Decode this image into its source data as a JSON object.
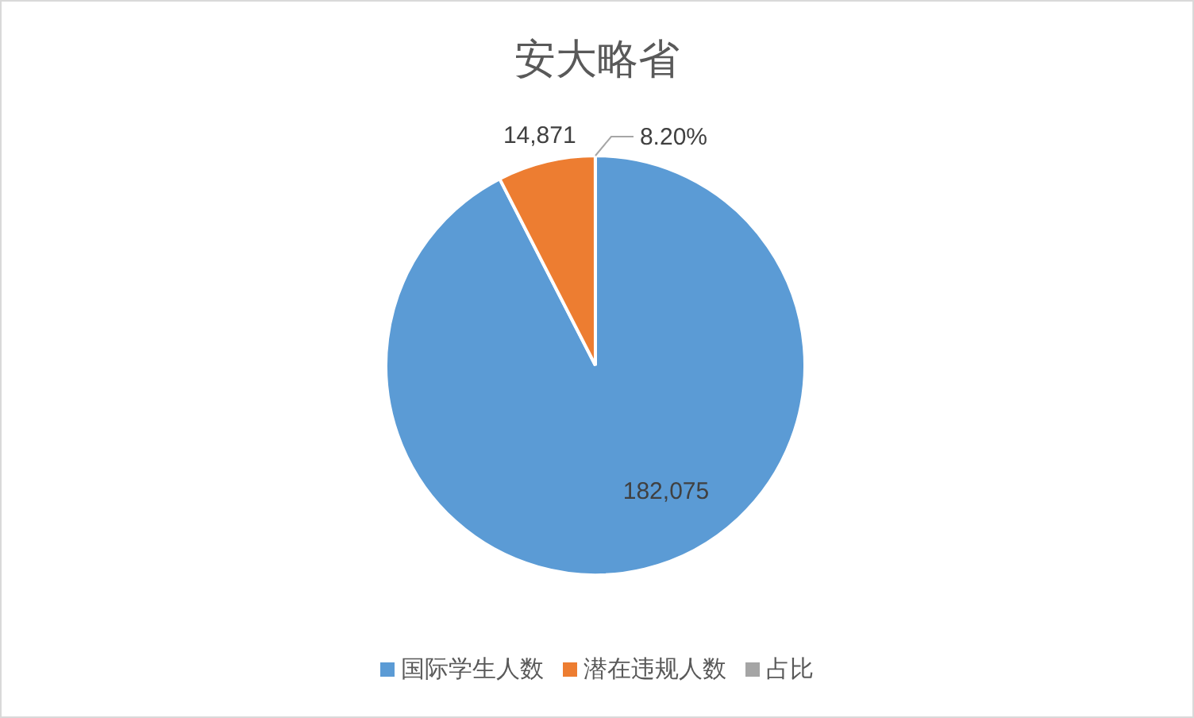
{
  "chart_data": {
    "type": "pie",
    "title": "安大略省",
    "categories": [
      "国际学生人数",
      "潜在违规人数",
      "占比"
    ],
    "values": [
      182075,
      14871,
      8.2
    ],
    "colors": [
      "#5b9bd5",
      "#ed7d31",
      "#a5a5a5"
    ],
    "value_labels": [
      "182,075",
      "14,871",
      "8.20%"
    ],
    "legend": "bottom"
  }
}
